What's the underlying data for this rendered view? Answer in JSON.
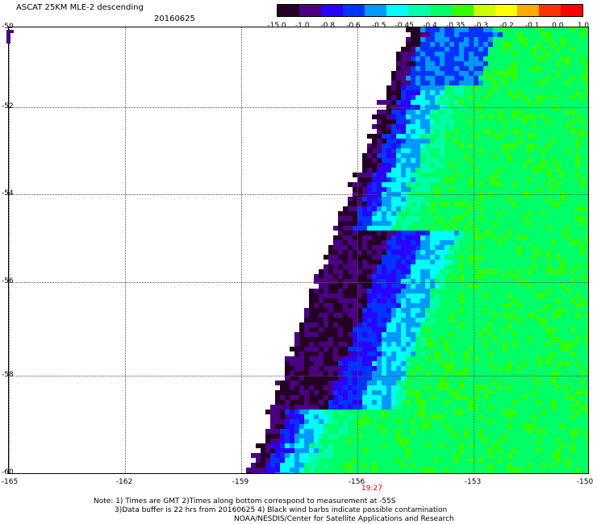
{
  "header": {
    "title": "ASCAT 25KM MLE-2 descending",
    "date": "20160625"
  },
  "colorbar": {
    "colors": [
      "#240024",
      "#4b0082",
      "#2a00ff",
      "#0033ff",
      "#0099ff",
      "#00ffff",
      "#00ffaa",
      "#00ff66",
      "#33ff00",
      "#ccff00",
      "#ffff00",
      "#ffaa00",
      "#ff3300",
      "#ff0000"
    ],
    "labels": [
      "-15.0",
      "-1.0",
      "-0.8",
      "-0.6",
      "-0.5",
      "-0.45",
      "-0.4",
      "-0.35",
      "-0.3",
      "-0.2",
      "-0.1",
      "0.0",
      "1.0"
    ]
  },
  "axes": {
    "y_labels": [
      "-50",
      "-52",
      "-54",
      "-56",
      "-58",
      "-60"
    ],
    "x_labels": [
      "-165",
      "-162",
      "-159",
      "-156",
      "-153",
      "-150"
    ]
  },
  "time_label": "19:27",
  "notes": {
    "line1": "Note: 1) Times are GMT 2)Times along bottom correspond to measurement at -55S",
    "line2": "3)Data buffer is 22 hrs from 20160625 4) Black wind barbs indicate possible contamination",
    "line3": "NOAA/NESDIS/Center for Satellite Applications and Research"
  }
}
